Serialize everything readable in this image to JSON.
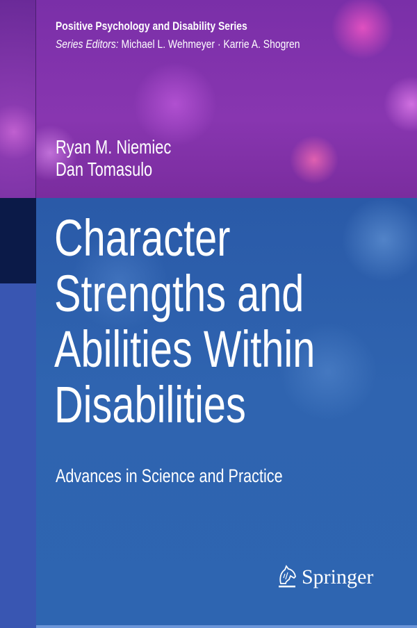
{
  "series": {
    "name": "Positive Psychology and Disability Series",
    "editors_label": "Series Editors:",
    "editors": "Michael L. Wehmeyer · Karrie A. Shogren"
  },
  "authors": [
    "Ryan M. Niemiec",
    "Dan Tomasulo"
  ],
  "title_lines": [
    "Character",
    "Strengths and",
    "Abilities Within",
    "Disabilities"
  ],
  "subtitle": "Advances in Science and Practice",
  "publisher": {
    "name": "Springer",
    "logo_icon": "knight-horse-icon"
  },
  "colors": {
    "purple": "#8836b0",
    "blue": "#2e63ae",
    "navy": "#0b1a48"
  }
}
